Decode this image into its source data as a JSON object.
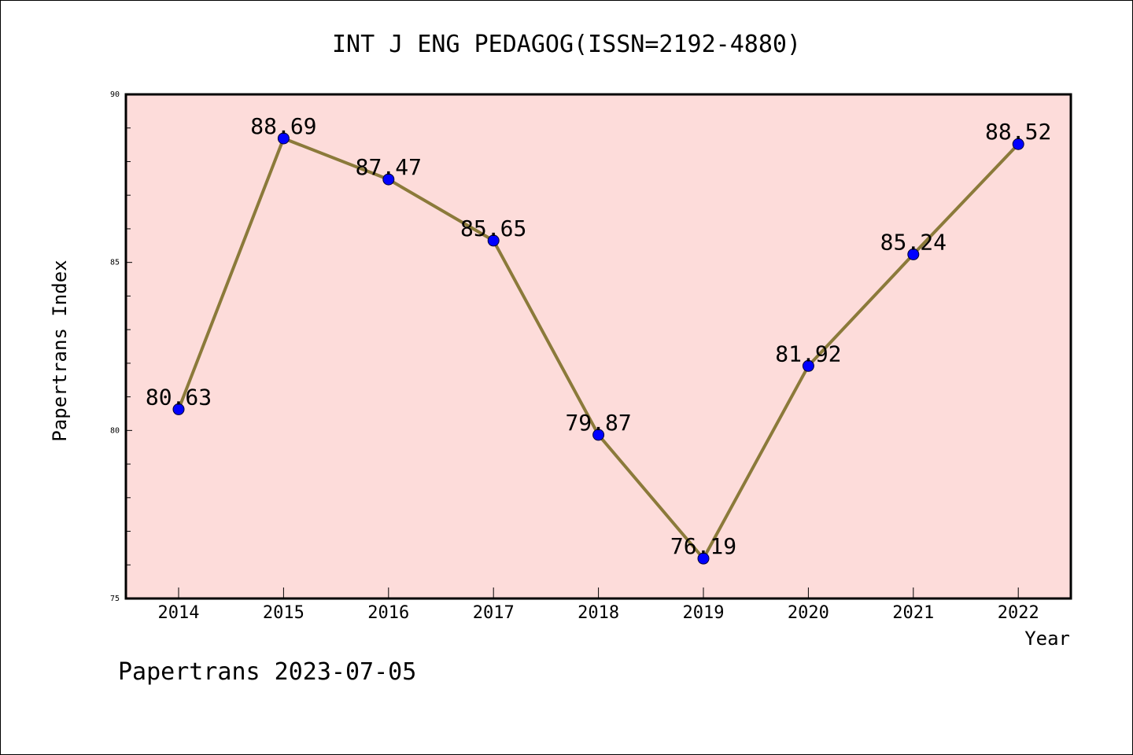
{
  "title": "INT J ENG PEDAGOG(ISSN=2192-4880)",
  "footer": "Papertrans 2023-07-05",
  "chart_data": {
    "type": "line",
    "title": "INT J ENG PEDAGOG(ISSN=2192-4880)",
    "xlabel": "Year",
    "ylabel": "Papertrans Index",
    "categories": [
      "2014",
      "2015",
      "2016",
      "2017",
      "2018",
      "2019",
      "2020",
      "2021",
      "2022"
    ],
    "values": [
      80.63,
      88.69,
      87.47,
      85.65,
      79.87,
      76.19,
      81.92,
      85.24,
      88.52
    ],
    "value_labels": [
      "80.63",
      "88.69",
      "87.47",
      "85.65",
      "79.87",
      "76.19",
      "81.92",
      "85.24",
      "88.52"
    ],
    "ylim": [
      75,
      90
    ],
    "yticks": [
      75,
      80,
      85,
      90
    ],
    "ytick_labels": [
      "75",
      "80",
      "85",
      "90"
    ],
    "grid": false,
    "colors": {
      "plot_background": "#fddcda",
      "line": "#8b7a3a",
      "marker": "#0000ff"
    }
  }
}
